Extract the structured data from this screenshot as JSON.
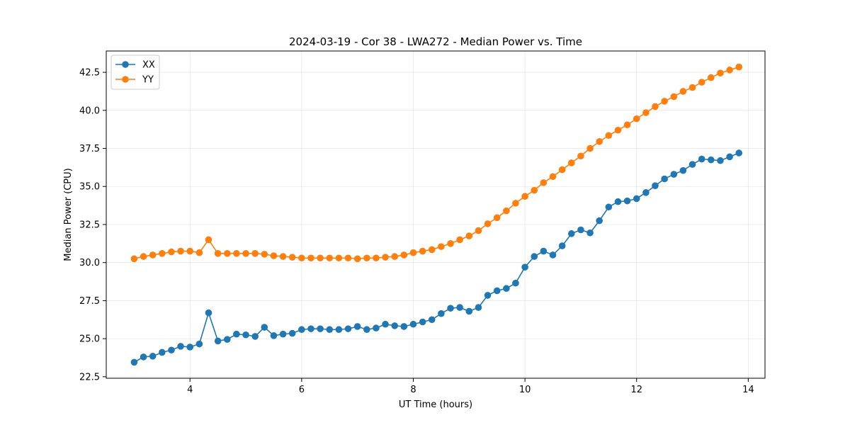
{
  "chart_data": {
    "type": "line",
    "title": "2024-03-19 - Cor 38 - LWA272 - Median Power vs. Time",
    "xlabel": "UT Time (hours)",
    "ylabel": "Median Power (CPU)",
    "xlim": [
      2.5,
      14.3
    ],
    "ylim": [
      22.4,
      43.9
    ],
    "xticks": [
      4,
      6,
      8,
      10,
      12,
      14
    ],
    "yticks": [
      22.5,
      25.0,
      27.5,
      30.0,
      32.5,
      35.0,
      37.5,
      40.0,
      42.5
    ],
    "grid": true,
    "legend_position": "top-left",
    "x": [
      3.0,
      3.167,
      3.333,
      3.5,
      3.667,
      3.833,
      4.0,
      4.167,
      4.333,
      4.5,
      4.667,
      4.833,
      5.0,
      5.167,
      5.333,
      5.5,
      5.667,
      5.833,
      6.0,
      6.167,
      6.333,
      6.5,
      6.667,
      6.833,
      7.0,
      7.167,
      7.333,
      7.5,
      7.667,
      7.833,
      8.0,
      8.167,
      8.333,
      8.5,
      8.667,
      8.833,
      9.0,
      9.167,
      9.333,
      9.5,
      9.667,
      9.833,
      10.0,
      10.167,
      10.333,
      10.5,
      10.667,
      10.833,
      11.0,
      11.167,
      11.333,
      11.5,
      11.667,
      11.833,
      12.0,
      12.167,
      12.333,
      12.5,
      12.667,
      12.833,
      13.0,
      13.167,
      13.333,
      13.5,
      13.667,
      13.833
    ],
    "series": [
      {
        "name": "XX",
        "color": "#1f77b4",
        "values": [
          23.45,
          23.8,
          23.85,
          24.1,
          24.25,
          24.5,
          24.45,
          24.65,
          26.7,
          24.85,
          24.95,
          25.3,
          25.25,
          25.15,
          25.75,
          25.2,
          25.3,
          25.35,
          25.6,
          25.65,
          25.65,
          25.6,
          25.6,
          25.65,
          25.8,
          25.6,
          25.7,
          25.95,
          25.85,
          25.8,
          25.95,
          26.1,
          26.25,
          26.65,
          27.0,
          27.05,
          26.8,
          27.05,
          27.85,
          28.15,
          28.3,
          28.65,
          29.7,
          30.4,
          30.75,
          30.5,
          31.1,
          31.9,
          32.15,
          31.95,
          32.75,
          33.65,
          34.0,
          34.05,
          34.2,
          34.6,
          35.05,
          35.5,
          35.8,
          36.05,
          36.45,
          36.8,
          36.75,
          36.7,
          36.95,
          37.2
        ]
      },
      {
        "name": "YY",
        "color": "#ff7f0e",
        "values": [
          30.25,
          30.4,
          30.5,
          30.6,
          30.7,
          30.75,
          30.75,
          30.65,
          31.5,
          30.6,
          30.6,
          30.6,
          30.6,
          30.6,
          30.55,
          30.45,
          30.4,
          30.35,
          30.3,
          30.3,
          30.3,
          30.3,
          30.3,
          30.3,
          30.25,
          30.3,
          30.3,
          30.35,
          30.4,
          30.5,
          30.65,
          30.75,
          30.85,
          31.05,
          31.25,
          31.5,
          31.75,
          32.1,
          32.55,
          32.95,
          33.4,
          33.9,
          34.35,
          34.75,
          35.25,
          35.65,
          36.1,
          36.55,
          37.0,
          37.5,
          37.95,
          38.35,
          38.7,
          39.05,
          39.45,
          39.85,
          40.25,
          40.6,
          40.9,
          41.25,
          41.5,
          41.85,
          42.15,
          42.45,
          42.65,
          42.85
        ]
      }
    ]
  }
}
